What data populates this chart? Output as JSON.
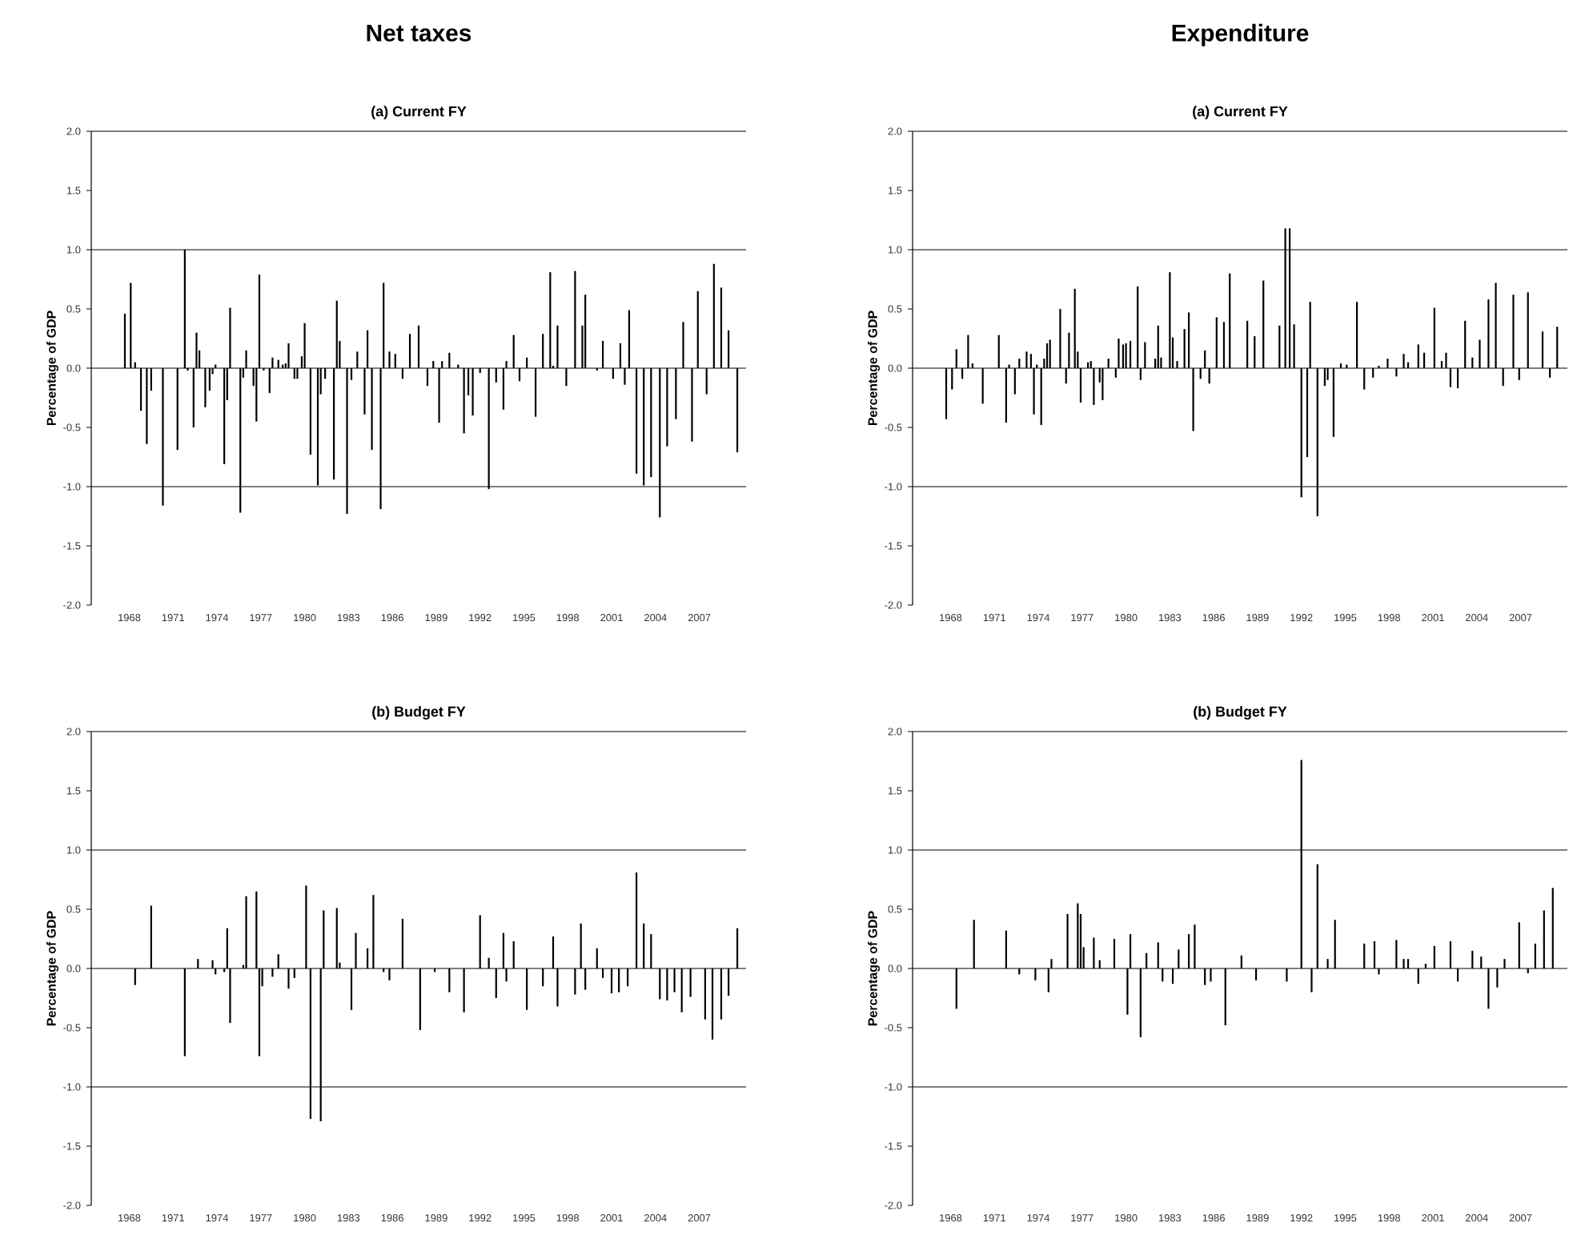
{
  "chart_data": [
    {
      "type": "bar",
      "title": "Net taxes",
      "subtitle": "(a) Current FY",
      "ylabel": "Percentage of GDP",
      "color": "#000000",
      "xlim": [
        1965.4,
        2010.2
      ],
      "ylim": [
        -2,
        2
      ],
      "xticks": [
        1968,
        1971,
        1974,
        1977,
        1980,
        1983,
        1986,
        1989,
        1992,
        1995,
        1998,
        2001,
        2004,
        2007
      ],
      "yticks": [
        {
          "value": -2,
          "label": "-2.0"
        },
        {
          "value": -1.5,
          "label": "-1.5"
        },
        {
          "value": -1,
          "label": "-1.0"
        },
        {
          "value": -0.5,
          "label": "-0.5"
        },
        {
          "value": 0,
          "label": "0.0"
        },
        {
          "value": 0.5,
          "label": "0.5"
        },
        {
          "value": 1,
          "label": "1.0"
        },
        {
          "value": 1.5,
          "label": "1.5"
        },
        {
          "value": 2,
          "label": "2.0"
        }
      ],
      "ref_lines": [
        {
          "axis": "y",
          "value": 1
        },
        {
          "axis": "y",
          "value": 0
        },
        {
          "axis": "y",
          "value": -1
        }
      ],
      "x": [
        1967.7,
        1968.1,
        1968.4,
        1968.8,
        1969.2,
        1969.5,
        1970.3,
        1971.3,
        1971.8,
        1972.0,
        1972.4,
        1972.6,
        1972.8,
        1973.2,
        1973.5,
        1973.7,
        1973.9,
        1974.5,
        1974.7,
        1974.9,
        1975.6,
        1975.8,
        1976.0,
        1976.5,
        1976.7,
        1976.9,
        1977.2,
        1977.6,
        1977.8,
        1978.2,
        1978.5,
        1978.7,
        1978.9,
        1979.3,
        1979.5,
        1979.8,
        1980.0,
        1980.4,
        1980.9,
        1981.1,
        1981.4,
        1982.0,
        1982.2,
        1982.4,
        1982.9,
        1983.2,
        1983.6,
        1984.1,
        1984.3,
        1984.6,
        1985.2,
        1985.4,
        1985.8,
        1986.2,
        1986.7,
        1987.2,
        1987.8,
        1988.4,
        1988.8,
        1989.2,
        1989.4,
        1989.9,
        1990.5,
        1990.9,
        1991.2,
        1991.5,
        1992.0,
        1992.6,
        1993.1,
        1993.6,
        1993.8,
        1994.3,
        1994.7,
        1995.2,
        1995.8,
        1996.3,
        1996.8,
        1997.0,
        1997.3,
        1997.9,
        1998.5,
        1999.0,
        1999.2,
        2000.0,
        2000.4,
        2001.1,
        2001.6,
        2001.9,
        2002.2,
        2002.7,
        2003.2,
        2003.7,
        2004.3,
        2004.8,
        2005.4,
        2005.9,
        2006.5,
        2006.9,
        2007.5,
        2008.0,
        2008.5,
        2009.0,
        2009.6
      ],
      "values": [
        0.46,
        0.72,
        0.05,
        -0.36,
        -0.64,
        -0.19,
        -1.16,
        -0.69,
        1.0,
        -0.02,
        -0.5,
        0.3,
        0.15,
        -0.33,
        -0.19,
        -0.05,
        0.03,
        -0.81,
        -0.27,
        0.51,
        -1.22,
        -0.08,
        0.15,
        -0.15,
        -0.45,
        0.79,
        -0.02,
        -0.21,
        0.09,
        0.07,
        0.03,
        0.04,
        0.21,
        -0.09,
        -0.09,
        0.1,
        0.38,
        -0.73,
        -0.99,
        -0.22,
        -0.09,
        -0.94,
        0.57,
        0.23,
        -1.23,
        -0.1,
        0.14,
        -0.39,
        0.32,
        -0.69,
        -1.19,
        0.72,
        0.14,
        0.12,
        -0.09,
        0.29,
        0.36,
        -0.15,
        0.06,
        -0.46,
        0.06,
        0.13,
        0.03,
        -0.55,
        -0.23,
        -0.4,
        -0.04,
        -1.02,
        -0.12,
        -0.35,
        0.06,
        0.28,
        -0.11,
        0.09,
        -0.41,
        0.29,
        0.81,
        0.02,
        0.36,
        -0.15,
        0.82,
        0.36,
        0.62,
        -0.02,
        0.23,
        -0.09,
        0.21,
        -0.14,
        0.49,
        -0.89,
        -0.99,
        -0.92,
        -1.26,
        -0.66,
        -0.43,
        0.39,
        -0.62,
        0.65,
        -0.22,
        0.88,
        0.68,
        0.32,
        -0.71
      ]
    },
    {
      "type": "bar",
      "title": "Expenditure",
      "subtitle": "(a) Current FY",
      "ylabel": "Percentage of GDP",
      "color": "#000000",
      "xlim": [
        1965.4,
        2010.2
      ],
      "ylim": [
        -2,
        2
      ],
      "xticks": [
        1968,
        1971,
        1974,
        1977,
        1980,
        1983,
        1986,
        1989,
        1992,
        1995,
        1998,
        2001,
        2004,
        2007
      ],
      "yticks": [
        {
          "value": -2,
          "label": "-2.0"
        },
        {
          "value": -1.5,
          "label": "-1.5"
        },
        {
          "value": -1,
          "label": "-1.0"
        },
        {
          "value": -0.5,
          "label": "-0.5"
        },
        {
          "value": 0,
          "label": "0.0"
        },
        {
          "value": 0.5,
          "label": "0.5"
        },
        {
          "value": 1,
          "label": "1.0"
        },
        {
          "value": 1.5,
          "label": "1.5"
        },
        {
          "value": 2,
          "label": "2.0"
        }
      ],
      "ref_lines": [
        {
          "axis": "y",
          "value": 1
        },
        {
          "axis": "y",
          "value": 0
        },
        {
          "axis": "y",
          "value": -1
        }
      ],
      "x": [
        1967.7,
        1968.1,
        1968.4,
        1968.8,
        1969.2,
        1969.5,
        1970.2,
        1971.3,
        1971.8,
        1972.0,
        1972.4,
        1972.7,
        1973.2,
        1973.5,
        1973.7,
        1973.9,
        1974.2,
        1974.4,
        1974.6,
        1974.8,
        1975.5,
        1975.9,
        1976.1,
        1976.5,
        1976.7,
        1976.9,
        1977.4,
        1977.6,
        1977.8,
        1978.2,
        1978.4,
        1978.8,
        1979.3,
        1979.5,
        1979.8,
        1980.0,
        1980.3,
        1980.8,
        1981.0,
        1981.3,
        1982.0,
        1982.2,
        1982.4,
        1983.0,
        1983.2,
        1983.5,
        1984.0,
        1984.3,
        1984.6,
        1985.1,
        1985.4,
        1985.7,
        1986.2,
        1986.7,
        1987.1,
        1988.3,
        1988.8,
        1989.4,
        1990.5,
        1990.9,
        1991.2,
        1991.5,
        1992.0,
        1992.4,
        1992.6,
        1993.1,
        1993.6,
        1993.8,
        1994.2,
        1994.7,
        1995.1,
        1995.8,
        1996.3,
        1996.9,
        1997.3,
        1997.9,
        1998.5,
        1999.0,
        1999.3,
        2000.0,
        2000.4,
        2001.1,
        2001.6,
        2001.9,
        2002.2,
        2002.7,
        2003.2,
        2003.7,
        2004.2,
        2004.8,
        2005.3,
        2005.8,
        2006.5,
        2006.9,
        2007.5,
        2008.5,
        2009.0,
        2009.5
      ],
      "values": [
        -0.43,
        -0.18,
        0.16,
        -0.09,
        0.28,
        0.04,
        -0.3,
        0.28,
        -0.46,
        0.03,
        -0.22,
        0.08,
        0.14,
        0.12,
        -0.39,
        0.03,
        -0.48,
        0.08,
        0.21,
        0.24,
        0.5,
        -0.13,
        0.3,
        0.67,
        0.14,
        -0.29,
        0.05,
        0.06,
        -0.31,
        -0.12,
        -0.27,
        0.08,
        -0.08,
        0.25,
        0.2,
        0.21,
        0.23,
        0.69,
        -0.1,
        0.22,
        0.08,
        0.36,
        0.09,
        0.81,
        0.26,
        0.06,
        0.33,
        0.47,
        -0.53,
        -0.09,
        0.15,
        -0.13,
        0.43,
        0.39,
        0.8,
        0.4,
        0.27,
        0.74,
        0.36,
        1.18,
        1.18,
        0.37,
        -1.09,
        -0.75,
        0.56,
        -1.25,
        -0.15,
        -0.1,
        -0.58,
        0.04,
        0.03,
        0.56,
        -0.18,
        -0.08,
        0.02,
        0.08,
        -0.07,
        0.12,
        0.05,
        0.2,
        0.13,
        0.51,
        0.06,
        0.13,
        -0.16,
        -0.17,
        0.4,
        0.09,
        0.24,
        0.58,
        0.72,
        -0.15,
        0.62,
        -0.1,
        0.64,
        0.31,
        -0.08,
        0.35
      ]
    },
    {
      "type": "bar",
      "title": "(b) Budget FY",
      "ylabel": "Percentage of GDP",
      "color": "#000000",
      "xlim": [
        1965.4,
        2010.2
      ],
      "ylim": [
        -2,
        2
      ],
      "xticks": [
        1968,
        1971,
        1974,
        1977,
        1980,
        1983,
        1986,
        1989,
        1992,
        1995,
        1998,
        2001,
        2004,
        2007
      ],
      "yticks": [
        {
          "value": -2,
          "label": "-2.0"
        },
        {
          "value": -1.5,
          "label": "-1.5"
        },
        {
          "value": -1,
          "label": "-1.0"
        },
        {
          "value": -0.5,
          "label": "-0.5"
        },
        {
          "value": 0,
          "label": "0.0"
        },
        {
          "value": 0.5,
          "label": "0.5"
        },
        {
          "value": 1,
          "label": "1.0"
        },
        {
          "value": 1.5,
          "label": "1.5"
        },
        {
          "value": 2,
          "label": "2.0"
        }
      ],
      "ref_lines": [
        {
          "axis": "y",
          "value": 1
        },
        {
          "axis": "y",
          "value": 0
        },
        {
          "axis": "y",
          "value": -1
        }
      ],
      "x": [
        1968.4,
        1969.5,
        1971.8,
        1972.7,
        1973.7,
        1973.9,
        1974.5,
        1974.7,
        1974.9,
        1975.8,
        1976.0,
        1976.7,
        1976.9,
        1977.1,
        1977.8,
        1978.2,
        1978.9,
        1979.3,
        1980.1,
        1980.4,
        1981.1,
        1981.3,
        1982.2,
        1982.4,
        1983.2,
        1983.5,
        1984.3,
        1984.7,
        1985.4,
        1985.8,
        1986.7,
        1987.9,
        1988.9,
        1989.9,
        1990.9,
        1992.0,
        1992.6,
        1993.1,
        1993.6,
        1993.8,
        1994.3,
        1995.2,
        1996.3,
        1997.0,
        1997.3,
        1998.5,
        1998.9,
        1999.2,
        2000.0,
        2000.4,
        2001.0,
        2001.5,
        2002.1,
        2002.7,
        2003.2,
        2003.7,
        2004.3,
        2004.8,
        2005.3,
        2005.8,
        2006.4,
        2007.4,
        2007.9,
        2008.5,
        2009.0,
        2009.6
      ],
      "values": [
        -0.14,
        0.53,
        -0.74,
        0.08,
        0.07,
        -0.05,
        -0.03,
        0.34,
        -0.46,
        0.03,
        0.61,
        0.65,
        -0.74,
        -0.15,
        -0.07,
        0.12,
        -0.17,
        -0.08,
        0.7,
        -1.27,
        -1.29,
        0.49,
        0.51,
        0.05,
        -0.35,
        0.3,
        0.17,
        0.62,
        -0.03,
        -0.1,
        0.42,
        -0.52,
        -0.03,
        -0.2,
        -0.37,
        0.45,
        0.09,
        -0.25,
        0.3,
        -0.11,
        0.23,
        -0.35,
        -0.15,
        0.27,
        -0.32,
        -0.22,
        0.38,
        -0.18,
        0.17,
        -0.08,
        -0.21,
        -0.2,
        -0.15,
        0.81,
        0.38,
        0.29,
        -0.26,
        -0.27,
        -0.2,
        -0.37,
        -0.24,
        -0.43,
        -0.6,
        -0.43,
        -0.23,
        0.34
      ]
    },
    {
      "type": "bar",
      "title": "(b) Budget FY",
      "ylabel": "Percentage of GDP",
      "color": "#000000",
      "xlim": [
        1965.4,
        2010.2
      ],
      "ylim": [
        -2,
        2
      ],
      "xticks": [
        1968,
        1971,
        1974,
        1977,
        1980,
        1983,
        1986,
        1989,
        1992,
        1995,
        1998,
        2001,
        2004,
        2007
      ],
      "yticks": [
        {
          "value": -2,
          "label": "-2.0"
        },
        {
          "value": -1.5,
          "label": "-1.5"
        },
        {
          "value": -1,
          "label": "-1.0"
        },
        {
          "value": -0.5,
          "label": "-0.5"
        },
        {
          "value": 0,
          "label": "0.0"
        },
        {
          "value": 0.5,
          "label": "0.5"
        },
        {
          "value": 1,
          "label": "1.0"
        },
        {
          "value": 1.5,
          "label": "1.5"
        },
        {
          "value": 2,
          "label": "2.0"
        }
      ],
      "ref_lines": [
        {
          "axis": "y",
          "value": 1
        },
        {
          "axis": "y",
          "value": 0
        },
        {
          "axis": "y",
          "value": -1
        }
      ],
      "x": [
        1968.4,
        1969.6,
        1971.8,
        1972.7,
        1973.8,
        1974.7,
        1974.9,
        1976.0,
        1976.7,
        1976.9,
        1977.1,
        1977.8,
        1978.2,
        1979.2,
        1980.1,
        1980.3,
        1981.0,
        1981.4,
        1982.2,
        1982.5,
        1983.2,
        1983.6,
        1984.3,
        1984.7,
        1985.4,
        1985.8,
        1986.8,
        1987.9,
        1988.9,
        1991.0,
        1992.0,
        1992.7,
        1993.1,
        1993.8,
        1994.3,
        1996.3,
        1997.0,
        1997.3,
        1998.5,
        1999.0,
        1999.3,
        2000.0,
        2000.5,
        2001.1,
        2002.2,
        2002.7,
        2003.7,
        2004.3,
        2004.8,
        2005.4,
        2005.9,
        2006.9,
        2007.5,
        2008.0,
        2008.6,
        2009.2
      ],
      "values": [
        -0.34,
        0.41,
        0.32,
        -0.05,
        -0.1,
        -0.2,
        0.08,
        0.46,
        0.55,
        0.46,
        0.18,
        0.26,
        0.07,
        0.25,
        -0.39,
        0.29,
        -0.58,
        0.13,
        0.22,
        -0.11,
        -0.13,
        0.16,
        0.29,
        0.37,
        -0.14,
        -0.11,
        -0.48,
        0.11,
        -0.1,
        -0.11,
        1.76,
        -0.2,
        0.88,
        0.08,
        0.41,
        0.21,
        0.23,
        -0.05,
        0.24,
        0.08,
        0.08,
        -0.13,
        0.04,
        0.19,
        0.23,
        -0.11,
        0.15,
        0.1,
        -0.34,
        -0.16,
        0.08,
        0.39,
        -0.04,
        0.21,
        0.49,
        0.68
      ]
    }
  ]
}
